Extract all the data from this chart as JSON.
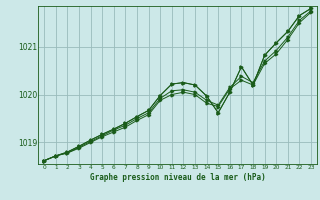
{
  "title": "Graphe pression niveau de la mer (hPa)",
  "bg_color": "#cce8e8",
  "grid_color": "#99bbbb",
  "line_color": "#1a5c1a",
  "xlim": [
    -0.5,
    23.5
  ],
  "ylim": [
    1018.55,
    1021.85
  ],
  "yticks": [
    1019,
    1020,
    1021
  ],
  "xticks": [
    0,
    1,
    2,
    3,
    4,
    5,
    6,
    7,
    8,
    9,
    10,
    11,
    12,
    13,
    14,
    15,
    16,
    17,
    18,
    19,
    20,
    21,
    22,
    23
  ],
  "series": [
    [
      1018.62,
      1018.72,
      1018.78,
      1018.88,
      1019.0,
      1019.12,
      1019.22,
      1019.32,
      1019.46,
      1019.58,
      1019.88,
      1020.0,
      1020.05,
      1020.0,
      1019.82,
      1019.75,
      1020.12,
      1020.3,
      1020.2,
      1020.65,
      1020.85,
      1021.15,
      1021.5,
      1021.72
    ],
    [
      1018.62,
      1018.72,
      1018.78,
      1018.9,
      1019.02,
      1019.14,
      1019.26,
      1019.36,
      1019.5,
      1019.62,
      1019.92,
      1020.08,
      1020.1,
      1020.05,
      1019.88,
      1019.78,
      1020.15,
      1020.38,
      1020.25,
      1020.7,
      1020.92,
      1021.2,
      1021.55,
      1021.75
    ],
    [
      1018.62,
      1018.72,
      1018.8,
      1018.92,
      1019.05,
      1019.17,
      1019.28,
      1019.4,
      1019.54,
      1019.67,
      1019.98,
      1020.22,
      1020.25,
      1020.2,
      1019.97,
      1019.62,
      1020.05,
      1020.58,
      1020.2,
      1020.82,
      1021.08,
      1021.32,
      1021.65,
      1021.8
    ],
    [
      1018.62,
      1018.72,
      1018.8,
      1018.92,
      1019.05,
      1019.17,
      1019.28,
      1019.4,
      1019.54,
      1019.67,
      1019.98,
      1020.22,
      1020.25,
      1020.2,
      1019.97,
      1019.62,
      1020.05,
      1020.58,
      1020.2,
      1020.82,
      1021.08,
      1021.32,
      1021.65,
      1021.8
    ]
  ]
}
